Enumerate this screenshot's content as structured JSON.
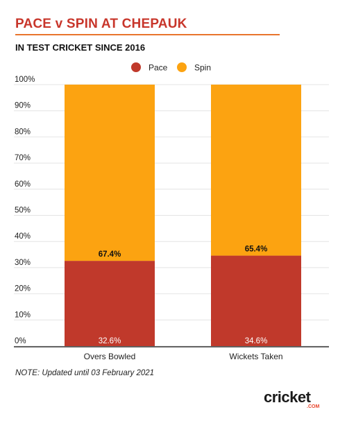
{
  "title": "PACE v SPIN AT CHEPAUK",
  "subtitle": "IN TEST CRICKET SINCE 2016",
  "note": "NOTE: Updated until 03 February 2021",
  "logo": {
    "text_main": "cricket",
    "text_sub": ".COM"
  },
  "colors": {
    "pace": "#c0392b",
    "spin": "#fca311",
    "title": "#c8362b",
    "rule": "#e8742c"
  },
  "chart_data": {
    "type": "bar",
    "stacked": true,
    "categories": [
      "Overs Bowled",
      "Wickets Taken"
    ],
    "series": [
      {
        "name": "Pace",
        "values": [
          32.6,
          34.6
        ],
        "labels": [
          "32.6%",
          "34.6%"
        ]
      },
      {
        "name": "Spin",
        "values": [
          67.4,
          65.4
        ],
        "labels": [
          "67.4%",
          "65.4%"
        ]
      }
    ],
    "ylim": [
      0,
      100
    ],
    "yticks": [
      "0%",
      "10%",
      "20%",
      "30%",
      "40%",
      "50%",
      "60%",
      "70%",
      "80%",
      "90%",
      "100%"
    ],
    "legend": "top-center",
    "grid": true
  }
}
